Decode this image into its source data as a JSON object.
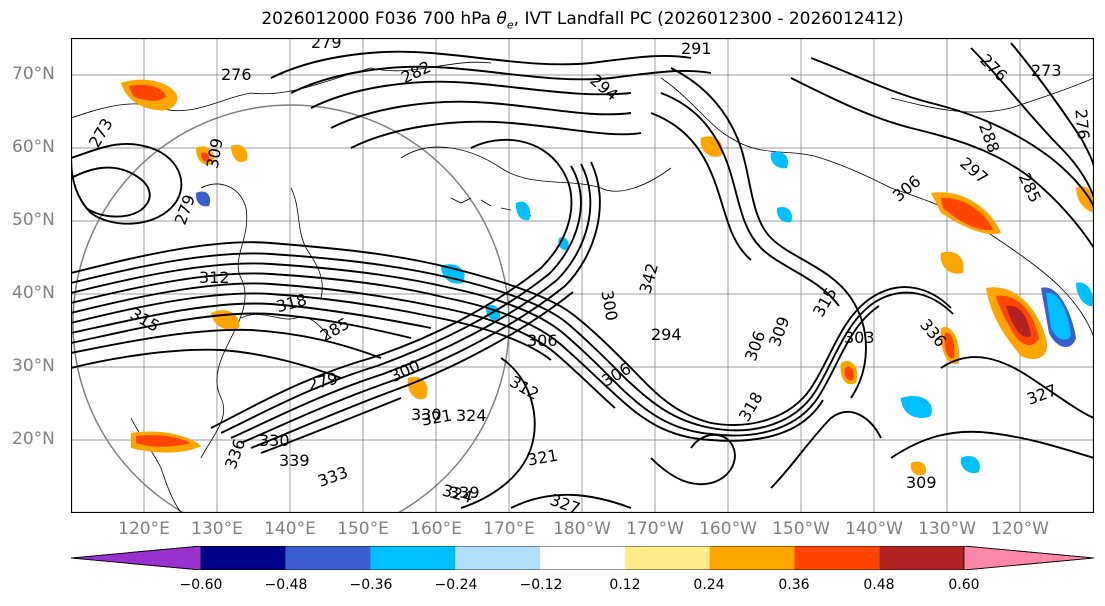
{
  "title": {
    "prefix": "2026012000 F036 700 hPa ",
    "theta": "θ",
    "theta_sub": "e",
    "suffix": ", IVT Landfall PC (2026012300 - 2026012412)"
  },
  "lat_labels": [
    "70°N",
    "60°N",
    "50°N",
    "40°N",
    "30°N",
    "20°N"
  ],
  "lon_labels": [
    "120°E",
    "130°E",
    "140°E",
    "150°E",
    "160°E",
    "170°E",
    "180°W",
    "170°W",
    "160°W",
    "150°W",
    "140°W",
    "130°W",
    "120°W"
  ],
  "contour_labels": [
    "279",
    "276",
    "282",
    "294",
    "291",
    "276",
    "273",
    "273",
    "288",
    "276",
    "279",
    "297",
    "285",
    "306",
    "309",
    "312",
    "315",
    "318",
    "285",
    "279",
    "300",
    "312",
    "321",
    "324",
    "330",
    "336",
    "339",
    "333",
    "342",
    "300",
    "306",
    "294",
    "306",
    "306",
    "309",
    "315",
    "318",
    "321",
    "324",
    "327",
    "330",
    "339",
    "336",
    "303",
    "309",
    "327"
  ],
  "colorbar": {
    "ticks": [
      "−0.60",
      "−0.48",
      "−0.36",
      "−0.24",
      "−0.12",
      "0.12",
      "0.24",
      "0.36",
      "0.48",
      "0.60"
    ],
    "colors": [
      "#9932cc",
      "#00008b",
      "#3a5fcd",
      "#00bfff",
      "#b0e0f8",
      "#ffffff",
      "#ffeb8a",
      "#ffa500",
      "#ff4500",
      "#b22222",
      "#ff88aa"
    ]
  }
}
